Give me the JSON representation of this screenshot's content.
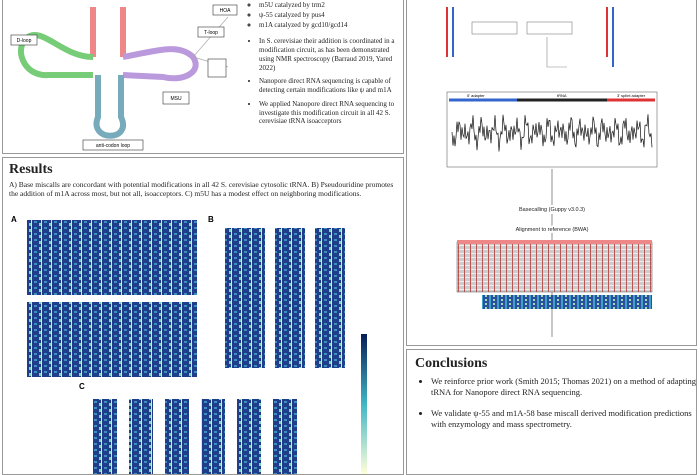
{
  "intro": {
    "enzymes": [
      "m5U catalyzed by trm2",
      "ψ-55 catalyzed by pus4",
      "m1A catalyzed by gcd10/gcd14"
    ],
    "bullets": [
      "In S. cerevisiae their addition is coordinated in a modification circuit, as has been demonstrated using NMR spectroscopy (Barraud 2019, Yared 2022)",
      "Nanopore direct RNA sequencing is capable of detecting certain modifications like ψ and m1A",
      "We applied Nanopore direct RNA sequencing to investigate this modification circuit in all 42 S. cerevisiae tRNA isoacceptors"
    ],
    "diagram_labels": [
      "D-loop",
      "T-loop",
      "anti-codon loop",
      "HOA",
      "MSU"
    ]
  },
  "methods": {
    "steps": [
      "Basecalling (Guppy v3.0.3)",
      "Alignment to reference (BWA)"
    ],
    "track_labels": [
      "5' adapter",
      "tRNA",
      "3' splint adapter"
    ]
  },
  "results": {
    "title": "Results",
    "text": "A) Base miscalls are concordant with potential modifications in all 42 S. cerevisiae cytosolic tRNA. B) Pseudouridine promotes the addition of m1A across most, but not all, isoacceptors. C) m5U has a modest effect on neighboring modifications.",
    "panels": [
      "A",
      "B",
      "C"
    ]
  },
  "conclusions": {
    "title": "Conclusions",
    "bullets": [
      "We reinforce prior work (Smith 2015; Thomas 2021) on a method of adapting tRNA for Nanopore direct RNA sequencing.",
      "We validate ψ-55 and m1A-58 base miscall derived modification predictions with enzymology and mass spectrometry."
    ]
  }
}
